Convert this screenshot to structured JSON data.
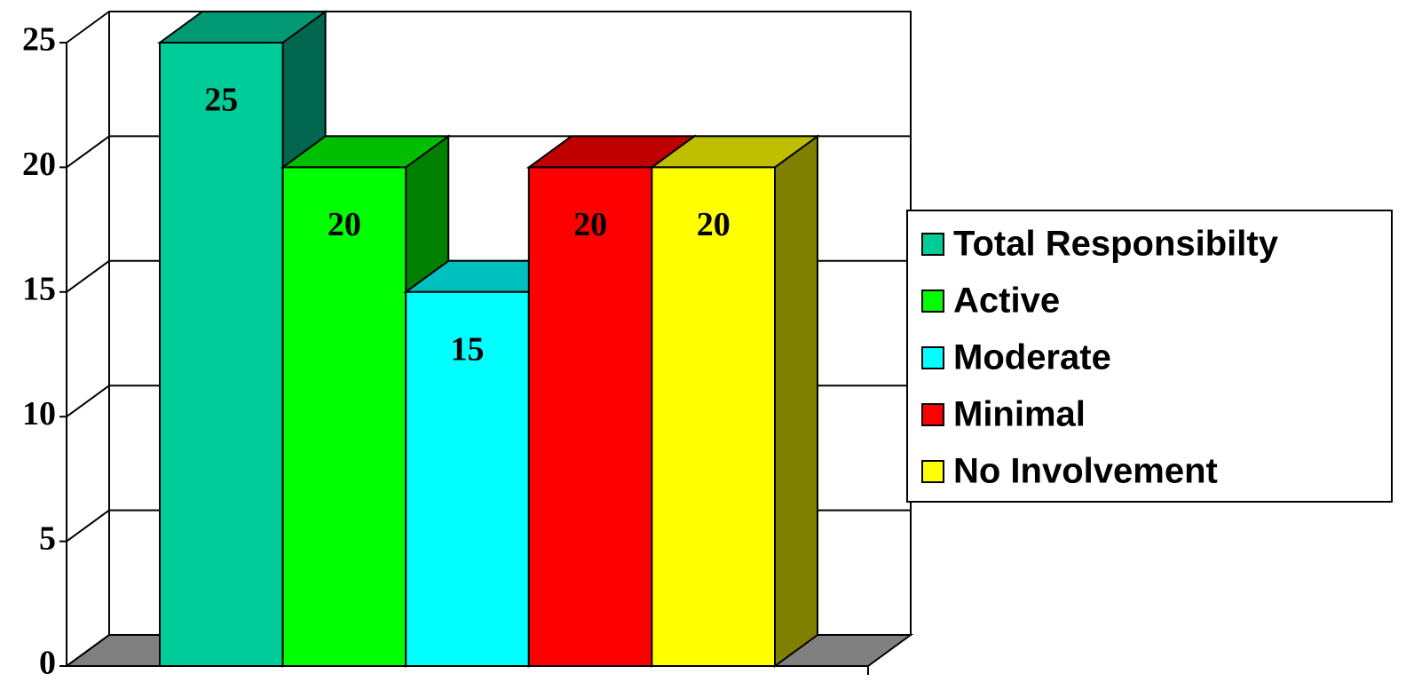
{
  "chart_data": {
    "type": "bar3d",
    "series": [
      {
        "name": "Total Responsibilty",
        "color": "#00cc99",
        "values": [
          25
        ]
      },
      {
        "name": "Active",
        "color": "#00ff00",
        "values": [
          20
        ]
      },
      {
        "name": "Moderate",
        "color": "#00ffff",
        "values": [
          15
        ]
      },
      {
        "name": "Minimal",
        "color": "#ff0000",
        "values": [
          20
        ]
      },
      {
        "name": "No Involvement",
        "color": "#ffff00",
        "values": [
          20
        ]
      }
    ],
    "ylim": [
      0,
      25
    ],
    "yticks": [
      0,
      5,
      10,
      15,
      20,
      25
    ],
    "grid": true,
    "legend": "right"
  }
}
